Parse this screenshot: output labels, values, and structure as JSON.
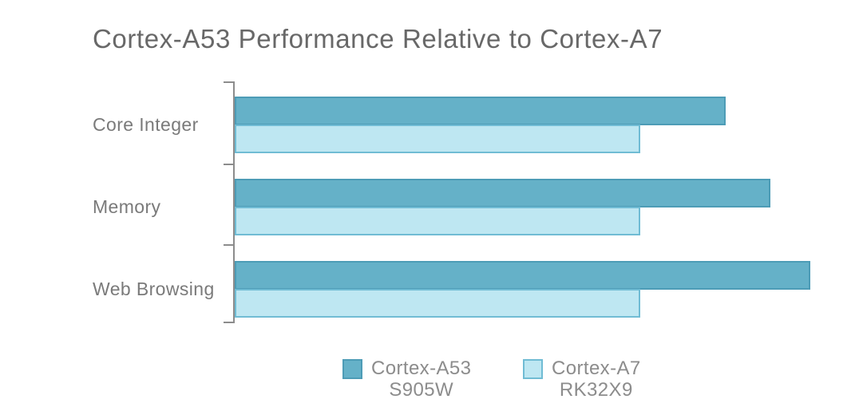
{
  "title": "Cortex-A53 Performance Relative to Cortex-A7",
  "chart_data": {
    "type": "bar",
    "orientation": "horizontal",
    "title": "Cortex-A53 Performance Relative to Cortex-A7",
    "categories": [
      "Core Integer",
      "Memory",
      "Web Browsing"
    ],
    "series": [
      {
        "name": "Cortex-A53",
        "subname": "S905W",
        "values": [
          1.21,
          1.32,
          1.42
        ],
        "fill": "#65B1C8",
        "border": "#4D9CB6"
      },
      {
        "name": "Cortex-A7",
        "subname": "RK32X9",
        "values": [
          1.0,
          1.0,
          1.0
        ],
        "fill": "#BEE7F2",
        "border": "#70BCD4"
      }
    ],
    "xlim": [
      0,
      1.54
    ],
    "xlabel": "",
    "ylabel": "",
    "grid": false,
    "legend_position": "bottom"
  },
  "colors": {
    "axis": "#8C8C8C",
    "title_text": "#686868",
    "category_text": "#7A7A7A",
    "legend_text": "#8C8C8C",
    "background": "#FFFFFF"
  }
}
